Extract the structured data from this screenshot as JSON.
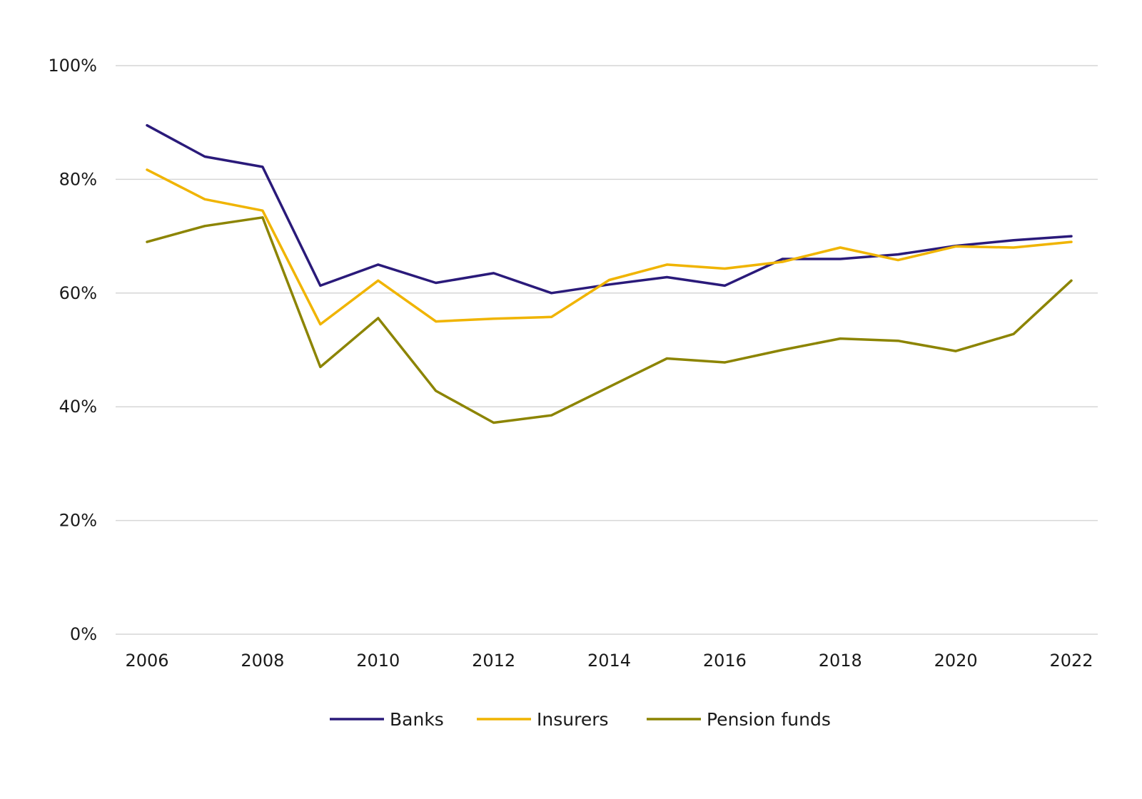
{
  "chart_data": {
    "type": "line",
    "title": "",
    "xlabel": "",
    "ylabel": "",
    "x": [
      2006,
      2007,
      2008,
      2009,
      2010,
      2011,
      2012,
      2013,
      2014,
      2015,
      2016,
      2017,
      2018,
      2019,
      2020,
      2021,
      2022
    ],
    "x_ticks": [
      "2006",
      "2008",
      "2010",
      "2012",
      "2014",
      "2016",
      "2018",
      "2020",
      "2022"
    ],
    "x_tick_values": [
      2006,
      2008,
      2010,
      2012,
      2014,
      2016,
      2018,
      2020,
      2022
    ],
    "ylim": [
      0,
      100
    ],
    "y_ticks": [
      "0%",
      "20%",
      "40%",
      "60%",
      "80%",
      "100%"
    ],
    "y_tick_values": [
      0,
      20,
      40,
      60,
      80,
      100
    ],
    "grid": true,
    "legend_position": "bottom",
    "series": [
      {
        "name": "Banks",
        "color": "#2a1a7a",
        "values": [
          89.5,
          84,
          82.2,
          61.3,
          65,
          61.8,
          63.5,
          60,
          61.5,
          62.8,
          61.3,
          66,
          66,
          66.8,
          68.3,
          69.3,
          70
        ]
      },
      {
        "name": "Insurers",
        "color": "#f0b400",
        "values": [
          81.7,
          76.5,
          74.5,
          54.5,
          62.2,
          55,
          55.5,
          55.8,
          62.3,
          65,
          64.3,
          65.5,
          68,
          65.8,
          68.2,
          68,
          69
        ]
      },
      {
        "name": "Pension funds",
        "color": "#8c8400",
        "values": [
          69,
          71.8,
          73.3,
          47,
          55.6,
          42.8,
          37.2,
          38.5,
          43.5,
          48.5,
          47.8,
          50,
          52,
          51.6,
          49.8,
          52.8,
          62.2
        ]
      }
    ]
  }
}
